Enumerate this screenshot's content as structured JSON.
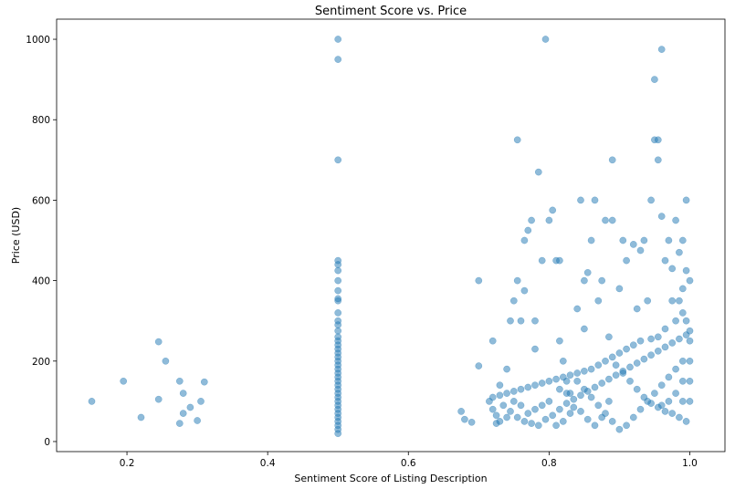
{
  "chart_data": {
    "type": "scatter",
    "title": "Sentiment Score vs. Price",
    "xlabel": "Sentiment Score of Listing Description",
    "ylabel": "Price (USD)",
    "xlim": [
      0.1,
      1.05
    ],
    "ylim": [
      -25,
      1050
    ],
    "xticks": [
      0.2,
      0.4,
      0.6,
      0.8,
      1.0
    ],
    "xtick_labels": [
      "0.2",
      "0.4",
      "0.6",
      "0.8",
      "1.0"
    ],
    "yticks": [
      0,
      200,
      400,
      600,
      800,
      1000
    ],
    "ytick_labels": [
      "0",
      "200",
      "400",
      "600",
      "800",
      "1000"
    ],
    "grid": false,
    "marker_color": "#1f77b4",
    "marker_alpha": 0.5,
    "points": [
      [
        0.15,
        100
      ],
      [
        0.195,
        150
      ],
      [
        0.22,
        60
      ],
      [
        0.245,
        105
      ],
      [
        0.245,
        248
      ],
      [
        0.255,
        200
      ],
      [
        0.275,
        150
      ],
      [
        0.28,
        120
      ],
      [
        0.28,
        70
      ],
      [
        0.275,
        45
      ],
      [
        0.29,
        85
      ],
      [
        0.3,
        52
      ],
      [
        0.305,
        100
      ],
      [
        0.31,
        148
      ],
      [
        0.5,
        1000
      ],
      [
        0.5,
        950
      ],
      [
        0.5,
        700
      ],
      [
        0.5,
        450
      ],
      [
        0.5,
        440
      ],
      [
        0.5,
        425
      ],
      [
        0.5,
        400
      ],
      [
        0.5,
        375
      ],
      [
        0.5,
        355
      ],
      [
        0.5,
        350
      ],
      [
        0.5,
        320
      ],
      [
        0.5,
        300
      ],
      [
        0.5,
        290
      ],
      [
        0.5,
        275
      ],
      [
        0.5,
        260
      ],
      [
        0.5,
        250
      ],
      [
        0.5,
        240
      ],
      [
        0.5,
        230
      ],
      [
        0.5,
        220
      ],
      [
        0.5,
        210
      ],
      [
        0.5,
        200
      ],
      [
        0.5,
        190
      ],
      [
        0.5,
        180
      ],
      [
        0.5,
        170
      ],
      [
        0.5,
        160
      ],
      [
        0.5,
        150
      ],
      [
        0.5,
        140
      ],
      [
        0.5,
        130
      ],
      [
        0.5,
        120
      ],
      [
        0.5,
        110
      ],
      [
        0.5,
        100
      ],
      [
        0.5,
        90
      ],
      [
        0.5,
        80
      ],
      [
        0.5,
        70
      ],
      [
        0.5,
        60
      ],
      [
        0.5,
        50
      ],
      [
        0.5,
        40
      ],
      [
        0.5,
        30
      ],
      [
        0.5,
        20
      ],
      [
        0.675,
        75
      ],
      [
        0.68,
        55
      ],
      [
        0.69,
        48
      ],
      [
        0.7,
        400
      ],
      [
        0.7,
        188
      ],
      [
        0.715,
        100
      ],
      [
        0.72,
        80
      ],
      [
        0.72,
        250
      ],
      [
        0.725,
        65
      ],
      [
        0.73,
        140
      ],
      [
        0.74,
        180
      ],
      [
        0.745,
        300
      ],
      [
        0.75,
        350
      ],
      [
        0.755,
        400
      ],
      [
        0.755,
        750
      ],
      [
        0.76,
        300
      ],
      [
        0.765,
        375
      ],
      [
        0.765,
        500
      ],
      [
        0.77,
        525
      ],
      [
        0.775,
        550
      ],
      [
        0.78,
        230
      ],
      [
        0.78,
        300
      ],
      [
        0.785,
        670
      ],
      [
        0.79,
        450
      ],
      [
        0.795,
        1000
      ],
      [
        0.8,
        550
      ],
      [
        0.805,
        575
      ],
      [
        0.81,
        450
      ],
      [
        0.815,
        450
      ],
      [
        0.815,
        250
      ],
      [
        0.82,
        200
      ],
      [
        0.825,
        150
      ],
      [
        0.83,
        120
      ],
      [
        0.84,
        330
      ],
      [
        0.845,
        600
      ],
      [
        0.85,
        280
      ],
      [
        0.85,
        400
      ],
      [
        0.855,
        420
      ],
      [
        0.86,
        500
      ],
      [
        0.865,
        600
      ],
      [
        0.87,
        350
      ],
      [
        0.875,
        400
      ],
      [
        0.88,
        550
      ],
      [
        0.885,
        260
      ],
      [
        0.89,
        700
      ],
      [
        0.89,
        550
      ],
      [
        0.9,
        380
      ],
      [
        0.905,
        500
      ],
      [
        0.91,
        450
      ],
      [
        0.92,
        490
      ],
      [
        0.925,
        330
      ],
      [
        0.93,
        475
      ],
      [
        0.935,
        500
      ],
      [
        0.94,
        350
      ],
      [
        0.945,
        600
      ],
      [
        0.95,
        900
      ],
      [
        0.95,
        750
      ],
      [
        0.955,
        700
      ],
      [
        0.955,
        750
      ],
      [
        0.96,
        975
      ],
      [
        0.96,
        560
      ],
      [
        0.965,
        450
      ],
      [
        0.97,
        500
      ],
      [
        0.975,
        430
      ],
      [
        0.98,
        550
      ],
      [
        0.985,
        470
      ],
      [
        0.99,
        500
      ],
      [
        0.99,
        380
      ],
      [
        0.995,
        600
      ],
      [
        0.995,
        425
      ],
      [
        1.0,
        400
      ],
      [
        0.975,
        350
      ],
      [
        0.985,
        350
      ],
      [
        0.99,
        320
      ],
      [
        0.995,
        300
      ],
      [
        0.98,
        300
      ],
      [
        0.965,
        280
      ],
      [
        0.955,
        260
      ],
      [
        0.945,
        255
      ],
      [
        0.93,
        250
      ],
      [
        0.92,
        240
      ],
      [
        0.91,
        230
      ],
      [
        0.9,
        220
      ],
      [
        0.89,
        210
      ],
      [
        0.88,
        200
      ],
      [
        0.87,
        190
      ],
      [
        0.86,
        180
      ],
      [
        0.85,
        175
      ],
      [
        0.84,
        170
      ],
      [
        0.83,
        165
      ],
      [
        0.82,
        160
      ],
      [
        0.81,
        155
      ],
      [
        0.8,
        150
      ],
      [
        0.79,
        145
      ],
      [
        0.78,
        140
      ],
      [
        0.77,
        135
      ],
      [
        0.76,
        130
      ],
      [
        0.75,
        125
      ],
      [
        0.74,
        120
      ],
      [
        0.73,
        115
      ],
      [
        0.72,
        110
      ],
      [
        0.735,
        90
      ],
      [
        0.745,
        75
      ],
      [
        0.755,
        60
      ],
      [
        0.765,
        50
      ],
      [
        0.775,
        45
      ],
      [
        0.785,
        40
      ],
      [
        0.795,
        55
      ],
      [
        0.805,
        65
      ],
      [
        0.815,
        80
      ],
      [
        0.825,
        95
      ],
      [
        0.835,
        105
      ],
      [
        0.845,
        115
      ],
      [
        0.855,
        125
      ],
      [
        0.865,
        135
      ],
      [
        0.875,
        145
      ],
      [
        0.885,
        155
      ],
      [
        0.895,
        165
      ],
      [
        0.905,
        175
      ],
      [
        0.915,
        185
      ],
      [
        0.925,
        195
      ],
      [
        0.935,
        205
      ],
      [
        0.945,
        215
      ],
      [
        0.955,
        225
      ],
      [
        0.965,
        235
      ],
      [
        0.975,
        245
      ],
      [
        0.985,
        255
      ],
      [
        0.995,
        265
      ],
      [
        1.0,
        275
      ],
      [
        0.99,
        200
      ],
      [
        0.98,
        180
      ],
      [
        0.97,
        160
      ],
      [
        0.96,
        140
      ],
      [
        0.95,
        120
      ],
      [
        0.94,
        100
      ],
      [
        0.93,
        80
      ],
      [
        0.92,
        60
      ],
      [
        0.91,
        40
      ],
      [
        0.9,
        30
      ],
      [
        0.89,
        50
      ],
      [
        0.88,
        70
      ],
      [
        0.87,
        90
      ],
      [
        0.86,
        110
      ],
      [
        0.85,
        130
      ],
      [
        0.84,
        150
      ],
      [
        0.83,
        70
      ],
      [
        0.82,
        50
      ],
      [
        0.81,
        40
      ],
      [
        0.8,
        100
      ],
      [
        0.79,
        90
      ],
      [
        0.78,
        80
      ],
      [
        0.77,
        70
      ],
      [
        0.76,
        90
      ],
      [
        0.75,
        100
      ],
      [
        0.74,
        60
      ],
      [
        0.73,
        50
      ],
      [
        0.725,
        45
      ],
      [
        1.0,
        100
      ],
      [
        1.0,
        150
      ],
      [
        1.0,
        200
      ],
      [
        1.0,
        250
      ],
      [
        0.99,
        100
      ],
      [
        0.99,
        150
      ],
      [
        0.98,
        120
      ],
      [
        0.97,
        100
      ],
      [
        0.96,
        90
      ],
      [
        0.995,
        50
      ],
      [
        0.985,
        60
      ],
      [
        0.975,
        70
      ],
      [
        0.965,
        75
      ],
      [
        0.955,
        85
      ],
      [
        0.945,
        95
      ],
      [
        0.935,
        110
      ],
      [
        0.925,
        130
      ],
      [
        0.915,
        150
      ],
      [
        0.905,
        170
      ],
      [
        0.895,
        190
      ],
      [
        0.885,
        100
      ],
      [
        0.875,
        60
      ],
      [
        0.865,
        40
      ],
      [
        0.855,
        55
      ],
      [
        0.845,
        75
      ],
      [
        0.835,
        85
      ],
      [
        0.825,
        120
      ],
      [
        0.815,
        130
      ]
    ]
  }
}
